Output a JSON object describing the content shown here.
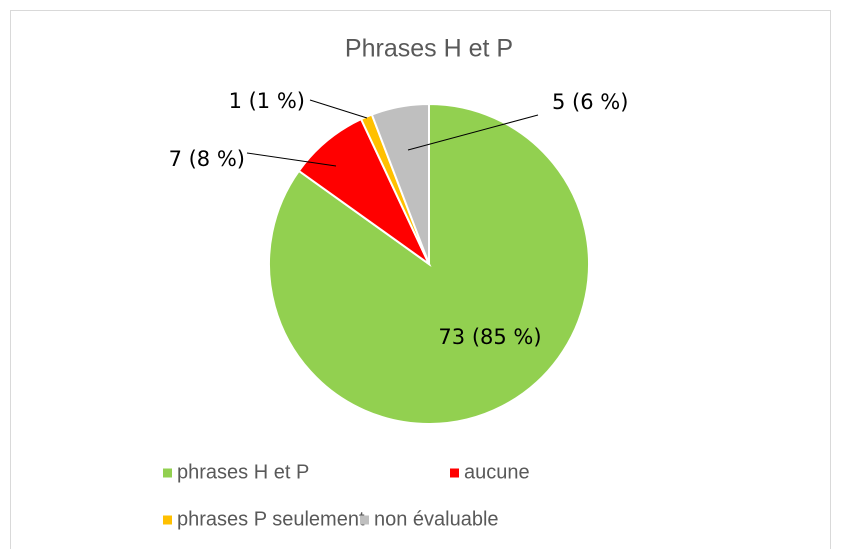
{
  "chart_data": {
    "type": "pie",
    "title": "Phrases H et P",
    "categories": [
      "phrases H et P",
      "aucune",
      "phrases P seulement",
      "non évaluable"
    ],
    "values": [
      73,
      7,
      1,
      5
    ],
    "value_labels": [
      "73 (85 %)",
      "7 (8 %)",
      "1 (1 %)",
      "5 (6 %)"
    ],
    "colors": [
      "#92d050",
      "#ff0000",
      "#ffc000",
      "#bfbfbf"
    ],
    "legend": "bottom"
  }
}
